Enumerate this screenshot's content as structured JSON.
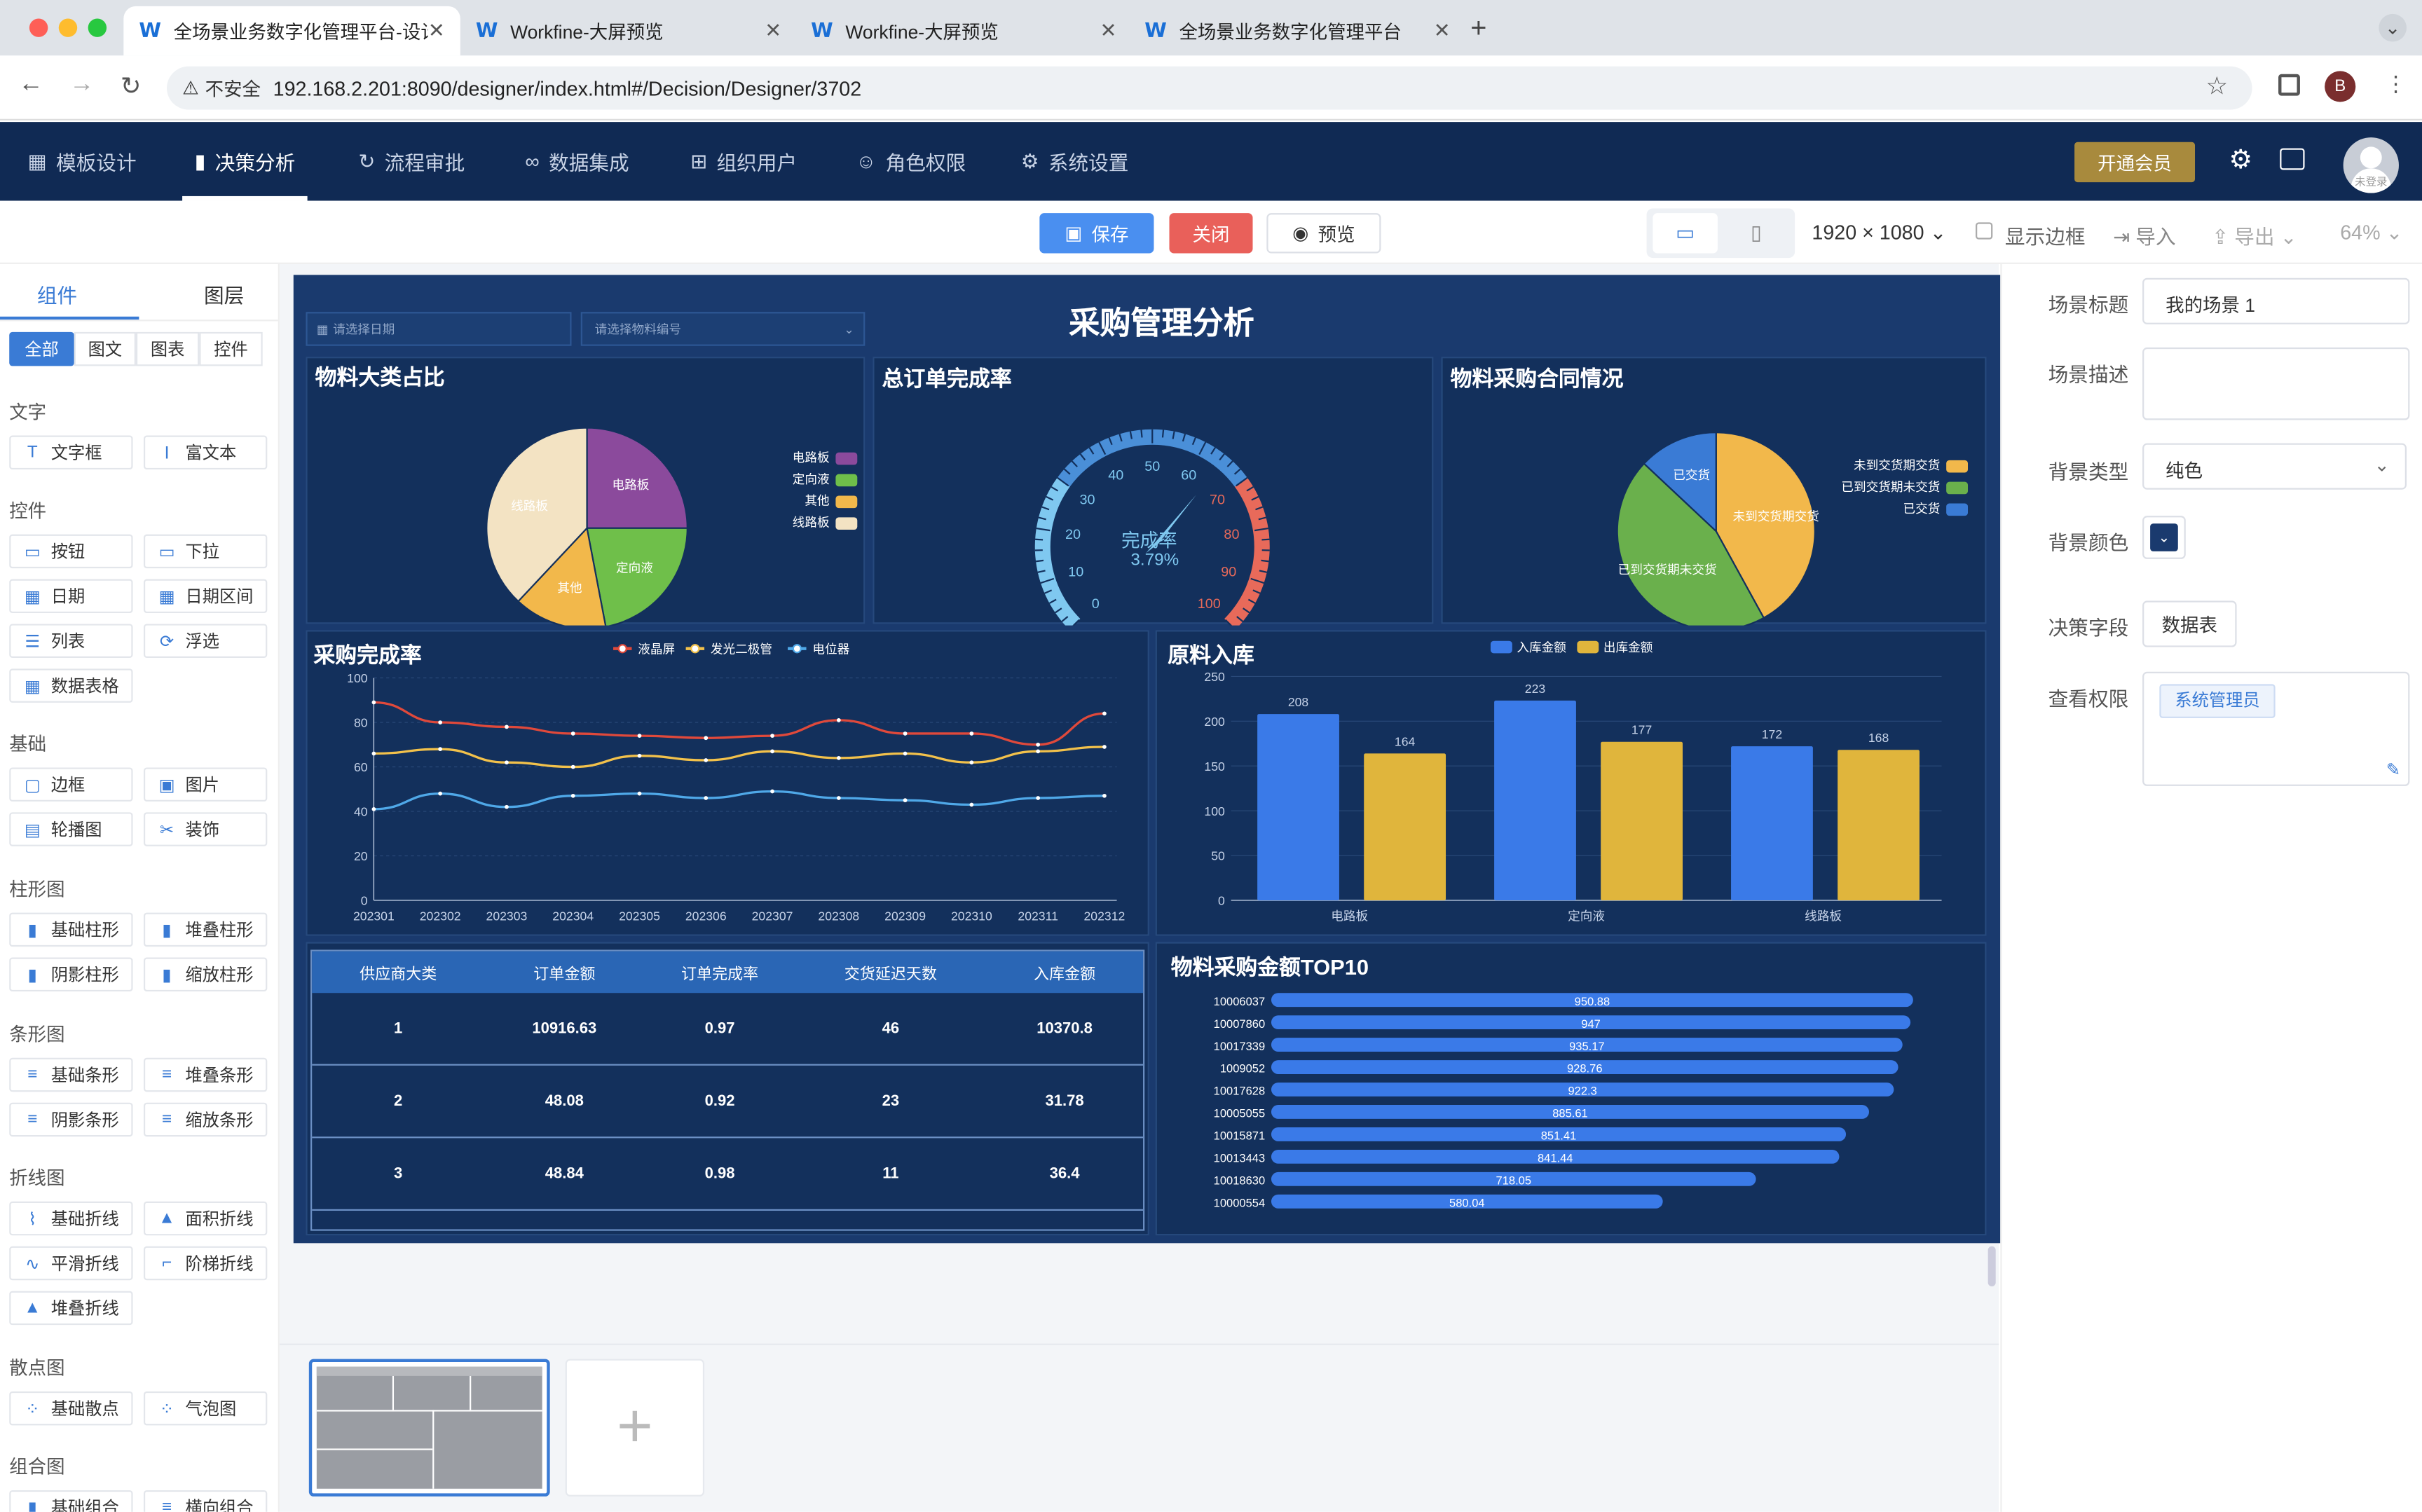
{
  "browser": {
    "tabs": [
      {
        "title": "全场景业务数字化管理平台-设计",
        "active": true
      },
      {
        "title": "Workfine-大屏预览",
        "active": false
      },
      {
        "title": "Workfine-大屏预览",
        "active": false
      },
      {
        "title": "全场景业务数字化管理平台",
        "active": false
      }
    ],
    "security_label": "不安全",
    "url": "192.168.2.201:8090/designer/index.html#/Decision/Designer/3702",
    "profile_initial": "B"
  },
  "app": {
    "menu": [
      {
        "label": "模板设计",
        "icon": "grid-icon"
      },
      {
        "label": "决策分析",
        "icon": "bar-chart-icon",
        "active": true
      },
      {
        "label": "流程审批",
        "icon": "refresh-icon"
      },
      {
        "label": "数据集成",
        "icon": "link-icon"
      },
      {
        "label": "组织用户",
        "icon": "org-icon"
      },
      {
        "label": "角色权限",
        "icon": "user-icon"
      },
      {
        "label": "系统设置",
        "icon": "gear-icon"
      }
    ],
    "vip_label": "开通会员",
    "avatar_label": "未登录"
  },
  "toolbar": {
    "save": "保存",
    "close": "关闭",
    "preview": "预览",
    "resolution": "1920 × 1080",
    "show_border": "显示边框",
    "import": "导入",
    "export": "导出",
    "zoom": "64%"
  },
  "left": {
    "tabs": [
      "组件",
      "图层"
    ],
    "filters": [
      "全部",
      "图文",
      "图表",
      "控件"
    ],
    "sections": [
      {
        "title": "文字",
        "items": [
          {
            "label": "文字框",
            "icon": "T"
          },
          {
            "label": "富文本",
            "icon": "Ⅰ"
          }
        ]
      },
      {
        "title": "控件",
        "items": [
          {
            "label": "按钮",
            "icon": "▭"
          },
          {
            "label": "下拉",
            "icon": "▭"
          },
          {
            "label": "日期",
            "icon": "▦"
          },
          {
            "label": "日期区间",
            "icon": "▦"
          },
          {
            "label": "列表",
            "icon": "☰"
          },
          {
            "label": "浮选",
            "icon": "⟳"
          },
          {
            "label": "数据表格",
            "icon": "▦"
          }
        ]
      },
      {
        "title": "基础",
        "items": [
          {
            "label": "边框",
            "icon": "▢"
          },
          {
            "label": "图片",
            "icon": "▣"
          },
          {
            "label": "轮播图",
            "icon": "▤"
          },
          {
            "label": "装饰",
            "icon": "✂"
          }
        ]
      },
      {
        "title": "柱形图",
        "items": [
          {
            "label": "基础柱形",
            "icon": "▮"
          },
          {
            "label": "堆叠柱形",
            "icon": "▮"
          },
          {
            "label": "阴影柱形",
            "icon": "▮"
          },
          {
            "label": "缩放柱形",
            "icon": "▮"
          }
        ]
      },
      {
        "title": "条形图",
        "items": [
          {
            "label": "基础条形",
            "icon": "≡"
          },
          {
            "label": "堆叠条形",
            "icon": "≡"
          },
          {
            "label": "阴影条形",
            "icon": "≡"
          },
          {
            "label": "缩放条形",
            "icon": "≡"
          }
        ]
      },
      {
        "title": "折线图",
        "items": [
          {
            "label": "基础折线",
            "icon": "⌇"
          },
          {
            "label": "面积折线",
            "icon": "▲"
          },
          {
            "label": "平滑折线",
            "icon": "∿"
          },
          {
            "label": "阶梯折线",
            "icon": "⌐"
          },
          {
            "label": "堆叠折线",
            "icon": "▲"
          }
        ]
      },
      {
        "title": "散点图",
        "items": [
          {
            "label": "基础散点",
            "icon": "⁘"
          },
          {
            "label": "气泡图",
            "icon": "⁘"
          }
        ]
      },
      {
        "title": "组合图",
        "items": [
          {
            "label": "基础组合",
            "icon": "▮"
          },
          {
            "label": "横向组合",
            "icon": "≡"
          }
        ]
      }
    ]
  },
  "dashboard": {
    "title": "采购管理分析",
    "date_placeholder": "请选择日期",
    "material_placeholder": "请选择物料编号",
    "pie1_title": "物料大类占比",
    "gauge_title": "总订单完成率",
    "gauge_label": "完成率",
    "gauge_value_text": "3.79%",
    "pie2_title": "物料采购合同情况",
    "line_title": "采购完成率",
    "bar_title": "原料入库",
    "hbar_title": "物料采购金额TOP10",
    "table": {
      "headers": [
        "供应商大类",
        "订单金额",
        "订单完成率",
        "交货延迟天数",
        "入库金额"
      ],
      "rows": [
        [
          "1",
          "10916.63",
          "0.97",
          "46",
          "10370.8"
        ],
        [
          "2",
          "48.08",
          "0.92",
          "23",
          "31.78"
        ],
        [
          "3",
          "48.84",
          "0.98",
          "11",
          "36.4"
        ]
      ]
    }
  },
  "chart_data": [
    {
      "type": "pie",
      "title": "物料大类占比",
      "labels": [
        "电路板",
        "定向液",
        "其他",
        "线路板"
      ],
      "values": [
        25,
        22,
        15,
        38
      ],
      "colors": [
        "#8b4a9c",
        "#6fbf4a",
        "#f2b84b",
        "#f3e3c3"
      ]
    },
    {
      "type": "gauge",
      "title": "总订单完成率",
      "value": 3.79,
      "min": 0,
      "max": 100,
      "ticks": [
        "0",
        "10",
        "20",
        "30",
        "40",
        "50",
        "60",
        "70",
        "80",
        "90",
        "100"
      ]
    },
    {
      "type": "pie",
      "title": "物料采购合同情况",
      "labels": [
        "未到交货期交货",
        "已到交货期未交货",
        "已交货"
      ],
      "values": [
        42,
        45,
        13
      ],
      "colors": [
        "#f2b84b",
        "#6ab04c",
        "#3a7bd5"
      ]
    },
    {
      "type": "line",
      "title": "采购完成率",
      "categories": [
        "202301",
        "202302",
        "202303",
        "202304",
        "202305",
        "202306",
        "202307",
        "202308",
        "202309",
        "202310",
        "202311",
        "202312"
      ],
      "ylim": [
        0,
        100
      ],
      "yticks": [
        0,
        20,
        40,
        60,
        80,
        100
      ],
      "series": [
        {
          "name": "液晶屏",
          "color": "#e0493b",
          "values": [
            89,
            80,
            78,
            75,
            74,
            73,
            74,
            81,
            75,
            75,
            70,
            84
          ]
        },
        {
          "name": "发光二极管",
          "color": "#f2c14b",
          "values": [
            66,
            68,
            62,
            60,
            65,
            63,
            67,
            64,
            66,
            62,
            67,
            69
          ]
        },
        {
          "name": "电位器",
          "color": "#4fa8e8",
          "values": [
            41,
            48,
            42,
            47,
            48,
            46,
            49,
            46,
            45,
            43,
            46,
            47
          ]
        }
      ]
    },
    {
      "type": "bar",
      "title": "原料入库",
      "categories": [
        "电路板",
        "定向液",
        "线路板"
      ],
      "ylim": [
        0,
        250
      ],
      "yticks": [
        0,
        50,
        100,
        150,
        200,
        250
      ],
      "series": [
        {
          "name": "入库金额",
          "color": "#3a7ae8",
          "values": [
            208,
            223,
            172
          ]
        },
        {
          "name": "出库金额",
          "color": "#e0b53c",
          "values": [
            164,
            177,
            168
          ]
        }
      ]
    },
    {
      "type": "bar",
      "orientation": "horizontal",
      "title": "物料采购金额TOP10",
      "categories": [
        "10006037",
        "10007860",
        "10017339",
        "1009052",
        "10017628",
        "10005055",
        "10015871",
        "10013443",
        "10018630",
        "10000554"
      ],
      "values": [
        950.88,
        947,
        935.17,
        928.76,
        922.3,
        885.61,
        851.41,
        841.44,
        718.05,
        580.04
      ],
      "xlim": [
        0,
        1000
      ]
    }
  ],
  "right": {
    "fields": [
      {
        "label": "场景标题",
        "value": "我的场景 1"
      },
      {
        "label": "场景描述",
        "value": ""
      },
      {
        "label": "背景类型",
        "value": "纯色"
      },
      {
        "label": "背景颜色",
        "value": "#1a3a6e"
      },
      {
        "label": "决策字段",
        "value": "数据表"
      },
      {
        "label": "查看权限",
        "value": "系统管理员"
      }
    ]
  }
}
